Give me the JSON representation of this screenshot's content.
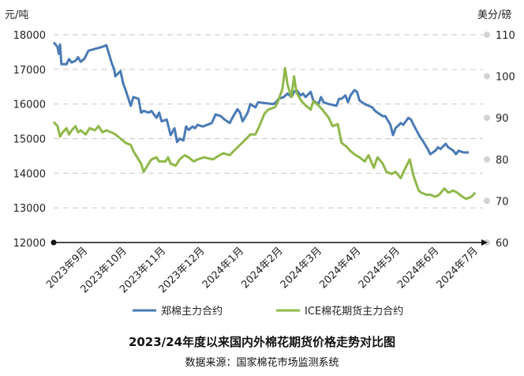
{
  "chart_data": {
    "type": "line",
    "title": "2023/24年度以来国内外棉花期货价格走势对比图",
    "source": "数据来源：国家棉花市场监测系统",
    "left_axis": {
      "unit": "元/吨",
      "ylim": [
        12000,
        18000
      ],
      "ticks": [
        "12000",
        "13000",
        "14000",
        "15000",
        "16000",
        "17000",
        "18000"
      ]
    },
    "right_axis": {
      "unit": "美分/磅",
      "ylim": [
        60,
        110
      ],
      "ticks": [
        "60",
        "70",
        "80",
        "90",
        "100",
        "110"
      ]
    },
    "x_ticks": [
      "2023年9月",
      "2023年10月",
      "2023年11月",
      "2023年12月",
      "2024年1月",
      "2024年2月",
      "2024年3月",
      "2024年4月",
      "2024年5月",
      "2024年6月",
      "2024年7月"
    ],
    "x_range": [
      "2023-09-01",
      "2024-07-31"
    ],
    "grid": "dashed horizontal",
    "legend_position": "bottom",
    "series": [
      {
        "name": "郑棉主力合约",
        "axis": "left",
        "color": "#4a7ab5",
        "points": [
          [
            "2023-09-01",
            17780
          ],
          [
            "2023-09-04",
            17650
          ],
          [
            "2023-09-05",
            17450
          ],
          [
            "2023-09-06",
            17720
          ],
          [
            "2023-09-07",
            17150
          ],
          [
            "2023-09-11",
            17150
          ],
          [
            "2023-09-13",
            17300
          ],
          [
            "2023-09-15",
            17200
          ],
          [
            "2023-09-18",
            17250
          ],
          [
            "2023-09-20",
            17350
          ],
          [
            "2023-09-22",
            17220
          ],
          [
            "2023-09-25",
            17310
          ],
          [
            "2023-09-28",
            17540
          ],
          [
            "2023-10-09",
            17650
          ],
          [
            "2023-10-12",
            17700
          ],
          [
            "2023-10-16",
            17200
          ],
          [
            "2023-10-18",
            17000
          ],
          [
            "2023-10-19",
            16800
          ],
          [
            "2023-10-23",
            16950
          ],
          [
            "2023-10-25",
            16600
          ],
          [
            "2023-10-27",
            16400
          ],
          [
            "2023-10-31",
            15950
          ],
          [
            "2023-11-02",
            16200
          ],
          [
            "2023-11-06",
            16150
          ],
          [
            "2023-11-08",
            15750
          ],
          [
            "2023-11-10",
            15800
          ],
          [
            "2023-11-14",
            15750
          ],
          [
            "2023-11-16",
            15800
          ],
          [
            "2023-11-20",
            15600
          ],
          [
            "2023-11-22",
            15750
          ],
          [
            "2023-11-24",
            15500
          ],
          [
            "2023-11-28",
            15550
          ],
          [
            "2023-12-01",
            15100
          ],
          [
            "2023-12-04",
            15300
          ],
          [
            "2023-12-06",
            14900
          ],
          [
            "2023-12-08",
            15000
          ],
          [
            "2023-12-11",
            14950
          ],
          [
            "2023-12-13",
            15350
          ],
          [
            "2023-12-15",
            15250
          ],
          [
            "2023-12-18",
            15350
          ],
          [
            "2023-12-20",
            15300
          ],
          [
            "2023-12-22",
            15400
          ],
          [
            "2023-12-26",
            15350
          ],
          [
            "2024-01-02",
            15450
          ],
          [
            "2024-01-05",
            15700
          ],
          [
            "2024-01-09",
            15650
          ],
          [
            "2024-01-12",
            15550
          ],
          [
            "2024-01-16",
            15450
          ],
          [
            "2024-01-18",
            15600
          ],
          [
            "2024-01-22",
            15850
          ],
          [
            "2024-01-24",
            15750
          ],
          [
            "2024-01-26",
            15500
          ],
          [
            "2024-01-30",
            15750
          ],
          [
            "2024-02-01",
            16000
          ],
          [
            "2024-02-05",
            15900
          ],
          [
            "2024-02-07",
            16050
          ],
          [
            "2024-02-19",
            16000
          ],
          [
            "2024-02-21",
            16050
          ],
          [
            "2024-02-23",
            16150
          ],
          [
            "2024-02-27",
            16200
          ],
          [
            "2024-03-01",
            16300
          ],
          [
            "2024-03-04",
            16200
          ],
          [
            "2024-03-06",
            16350
          ],
          [
            "2024-03-08",
            16400
          ],
          [
            "2024-03-11",
            16250
          ],
          [
            "2024-03-13",
            16300
          ],
          [
            "2024-03-15",
            16200
          ],
          [
            "2024-03-19",
            16350
          ],
          [
            "2024-03-21",
            16100
          ],
          [
            "2024-03-25",
            16000
          ],
          [
            "2024-03-27",
            16200
          ],
          [
            "2024-03-29",
            16050
          ],
          [
            "2024-04-02",
            16000
          ],
          [
            "2024-04-08",
            15950
          ],
          [
            "2024-04-10",
            16150
          ],
          [
            "2024-04-12",
            16150
          ],
          [
            "2024-04-15",
            16250
          ],
          [
            "2024-04-17",
            16050
          ],
          [
            "2024-04-19",
            16250
          ],
          [
            "2024-04-22",
            16400
          ],
          [
            "2024-04-24",
            16350
          ],
          [
            "2024-04-26",
            16100
          ],
          [
            "2024-04-30",
            16000
          ],
          [
            "2024-05-06",
            15900
          ],
          [
            "2024-05-08",
            15800
          ],
          [
            "2024-05-10",
            15750
          ],
          [
            "2024-05-14",
            15650
          ],
          [
            "2024-05-16",
            15650
          ],
          [
            "2024-05-20",
            15400
          ],
          [
            "2024-05-22",
            15100
          ],
          [
            "2024-05-24",
            15300
          ],
          [
            "2024-05-28",
            15450
          ],
          [
            "2024-05-30",
            15400
          ],
          [
            "2024-06-03",
            15600
          ],
          [
            "2024-06-05",
            15550
          ],
          [
            "2024-06-07",
            15400
          ],
          [
            "2024-06-12",
            15050
          ],
          [
            "2024-06-14",
            14950
          ],
          [
            "2024-06-18",
            14700
          ],
          [
            "2024-06-20",
            14550
          ],
          [
            "2024-06-24",
            14650
          ],
          [
            "2024-06-26",
            14750
          ],
          [
            "2024-06-28",
            14700
          ],
          [
            "2024-07-02",
            14850
          ],
          [
            "2024-07-04",
            14750
          ],
          [
            "2024-07-08",
            14650
          ],
          [
            "2024-07-10",
            14550
          ],
          [
            "2024-07-12",
            14650
          ],
          [
            "2024-07-16",
            14600
          ],
          [
            "2024-07-20",
            14600
          ]
        ]
      },
      {
        "name": "ICE棉花期货主力合约",
        "axis": "right",
        "color": "#8fb84a",
        "points": [
          [
            "2023-09-01",
            89
          ],
          [
            "2023-09-04",
            88
          ],
          [
            "2023-09-06",
            85.5
          ],
          [
            "2023-09-08",
            86.5
          ],
          [
            "2023-09-11",
            87.5
          ],
          [
            "2023-09-13",
            86
          ],
          [
            "2023-09-15",
            87
          ],
          [
            "2023-09-18",
            88
          ],
          [
            "2023-09-20",
            86.5
          ],
          [
            "2023-09-22",
            87
          ],
          [
            "2023-09-26",
            86
          ],
          [
            "2023-09-29",
            87.5
          ],
          [
            "2023-10-03",
            87
          ],
          [
            "2023-10-06",
            88
          ],
          [
            "2023-10-09",
            86.5
          ],
          [
            "2023-10-12",
            87
          ],
          [
            "2023-10-16",
            86.5
          ],
          [
            "2023-10-19",
            86
          ],
          [
            "2023-10-23",
            85
          ],
          [
            "2023-10-25",
            84.5
          ],
          [
            "2023-10-27",
            84
          ],
          [
            "2023-10-31",
            83.5
          ],
          [
            "2023-11-02",
            82
          ],
          [
            "2023-11-06",
            80
          ],
          [
            "2023-11-08",
            79
          ],
          [
            "2023-11-10",
            77
          ],
          [
            "2023-11-14",
            79
          ],
          [
            "2023-11-16",
            80
          ],
          [
            "2023-11-20",
            80.5
          ],
          [
            "2023-11-22",
            79.5
          ],
          [
            "2023-11-27",
            79.5
          ],
          [
            "2023-11-29",
            80.5
          ],
          [
            "2023-12-01",
            79
          ],
          [
            "2023-12-05",
            78.5
          ],
          [
            "2023-12-08",
            80
          ],
          [
            "2023-12-12",
            81
          ],
          [
            "2023-12-15",
            80.5
          ],
          [
            "2023-12-19",
            79.5
          ],
          [
            "2023-12-22",
            80
          ],
          [
            "2023-12-27",
            80.5
          ],
          [
            "2024-01-03",
            80
          ],
          [
            "2024-01-08",
            81
          ],
          [
            "2024-01-11",
            81.5
          ],
          [
            "2024-01-16",
            81
          ],
          [
            "2024-01-19",
            82
          ],
          [
            "2024-01-24",
            83.5
          ],
          [
            "2024-01-29",
            85
          ],
          [
            "2024-02-01",
            86
          ],
          [
            "2024-02-05",
            86
          ],
          [
            "2024-02-08",
            88
          ],
          [
            "2024-02-12",
            91
          ],
          [
            "2024-02-15",
            92
          ],
          [
            "2024-02-20",
            92.5
          ],
          [
            "2024-02-22",
            93.5
          ],
          [
            "2024-02-26",
            97
          ],
          [
            "2024-02-28",
            102
          ],
          [
            "2024-03-01",
            98
          ],
          [
            "2024-03-04",
            95
          ],
          [
            "2024-03-06",
            100
          ],
          [
            "2024-03-08",
            96
          ],
          [
            "2024-03-12",
            94
          ],
          [
            "2024-03-15",
            93
          ],
          [
            "2024-03-19",
            92
          ],
          [
            "2024-03-21",
            94
          ],
          [
            "2024-03-25",
            93
          ],
          [
            "2024-03-28",
            92
          ],
          [
            "2024-04-02",
            90
          ],
          [
            "2024-04-05",
            88
          ],
          [
            "2024-04-09",
            88.5
          ],
          [
            "2024-04-12",
            84
          ],
          [
            "2024-04-16",
            83
          ],
          [
            "2024-04-19",
            82
          ],
          [
            "2024-04-23",
            81
          ],
          [
            "2024-04-26",
            80.5
          ],
          [
            "2024-04-30",
            79.5
          ],
          [
            "2024-05-03",
            81
          ],
          [
            "2024-05-07",
            78
          ],
          [
            "2024-05-10",
            80.5
          ],
          [
            "2024-05-14",
            79
          ],
          [
            "2024-05-17",
            77
          ],
          [
            "2024-05-21",
            76.5
          ],
          [
            "2024-05-24",
            77
          ],
          [
            "2024-05-28",
            75.5
          ],
          [
            "2024-05-31",
            77.5
          ],
          [
            "2024-06-04",
            80
          ],
          [
            "2024-06-07",
            76
          ],
          [
            "2024-06-11",
            72.5
          ],
          [
            "2024-06-13",
            72
          ],
          [
            "2024-06-17",
            71.5
          ],
          [
            "2024-06-20",
            71.5
          ],
          [
            "2024-06-24",
            71
          ],
          [
            "2024-06-27",
            71.5
          ],
          [
            "2024-07-01",
            73
          ],
          [
            "2024-07-04",
            72
          ],
          [
            "2024-07-08",
            72.5
          ],
          [
            "2024-07-11",
            72
          ],
          [
            "2024-07-15",
            71
          ],
          [
            "2024-07-18",
            70.5
          ],
          [
            "2024-07-22",
            71
          ],
          [
            "2024-07-25",
            72
          ]
        ]
      }
    ]
  }
}
